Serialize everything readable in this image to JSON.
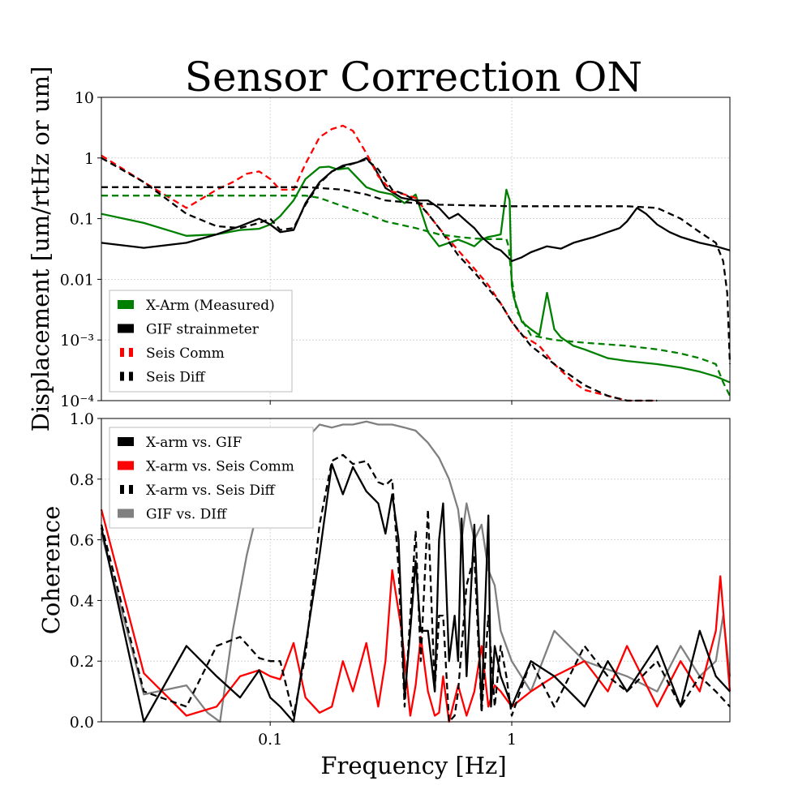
{
  "title": "Sensor Correction ON",
  "xlabel": "Frequency [Hz]",
  "colors": {
    "green": "#008000",
    "black": "#000000",
    "red": "#ff0000",
    "gray": "#808080",
    "grid": "#cccccc"
  },
  "chart_data": [
    {
      "type": "line",
      "name_hint": "top-panel",
      "xscale": "log",
      "yscale": "log",
      "xlim": [
        0.02,
        8
      ],
      "ylim": [
        0.0001,
        10
      ],
      "ylabel": "Displacement [um/rtHz or um]",
      "yticks": [
        {
          "value": 10,
          "label": "10"
        },
        {
          "value": 1,
          "label": "1"
        },
        {
          "value": 0.1,
          "label": "0.1"
        },
        {
          "value": 0.01,
          "label": "0.01"
        },
        {
          "value": 0.001,
          "label": "10⁻³"
        },
        {
          "value": 0.0001,
          "label": "10⁻⁴"
        }
      ],
      "grid": true,
      "legend_position": "lower-left",
      "legend": [
        {
          "label": "X-Arm (Measured)",
          "color": "#008000",
          "style": "solid"
        },
        {
          "label": "GIF strainmeter",
          "color": "#000000",
          "style": "solid"
        },
        {
          "label": "Seis Comm",
          "color": "#ff0000",
          "style": "dashed"
        },
        {
          "label": "Seis Diff",
          "color": "#000000",
          "style": "dashed"
        }
      ],
      "series": [
        {
          "color": "#008000",
          "dash": false,
          "x": [
            0.02,
            0.03,
            0.045,
            0.06,
            0.075,
            0.09,
            0.1,
            0.11,
            0.125,
            0.14,
            0.16,
            0.175,
            0.19,
            0.21,
            0.25,
            0.28,
            0.32,
            0.36,
            0.4,
            0.45,
            0.5,
            0.55,
            0.6,
            0.65,
            0.7,
            0.75,
            0.8,
            0.85,
            0.9,
            0.95,
            0.98,
            1.0,
            1.02,
            1.1,
            1.2,
            1.3,
            1.4,
            1.5,
            1.6,
            1.8,
            2.0,
            2.5,
            3.0,
            4.0,
            5.0,
            6.0,
            7.0,
            8.0
          ],
          "y": [
            0.12,
            0.085,
            0.052,
            0.055,
            0.065,
            0.068,
            0.08,
            0.11,
            0.2,
            0.45,
            0.7,
            0.72,
            0.65,
            0.68,
            0.33,
            0.28,
            0.25,
            0.18,
            0.25,
            0.06,
            0.035,
            0.04,
            0.045,
            0.04,
            0.035,
            0.045,
            0.05,
            0.052,
            0.055,
            0.3,
            0.2,
            0.008,
            0.005,
            0.002,
            0.0015,
            0.0012,
            0.006,
            0.0015,
            0.0011,
            0.0008,
            0.0007,
            0.0005,
            0.00045,
            0.0004,
            0.00035,
            0.0003,
            0.00025,
            0.0002
          ]
        },
        {
          "color": "#000000",
          "dash": false,
          "x": [
            0.02,
            0.03,
            0.045,
            0.06,
            0.075,
            0.09,
            0.1,
            0.11,
            0.125,
            0.14,
            0.16,
            0.18,
            0.2,
            0.23,
            0.25,
            0.27,
            0.3,
            0.35,
            0.4,
            0.45,
            0.5,
            0.55,
            0.6,
            0.65,
            0.7,
            0.75,
            0.8,
            0.85,
            0.9,
            1.0,
            1.1,
            1.2,
            1.4,
            1.6,
            1.8,
            2.0,
            2.2,
            2.5,
            2.8,
            3.0,
            3.3,
            3.6,
            4.0,
            4.5,
            5.0,
            6.0,
            7.0,
            8.0
          ],
          "y": [
            0.04,
            0.033,
            0.04,
            0.055,
            0.075,
            0.1,
            0.08,
            0.06,
            0.065,
            0.18,
            0.4,
            0.6,
            0.75,
            0.85,
            1.0,
            0.7,
            0.32,
            0.22,
            0.2,
            0.2,
            0.15,
            0.1,
            0.12,
            0.09,
            0.07,
            0.05,
            0.04,
            0.033,
            0.03,
            0.02,
            0.023,
            0.028,
            0.035,
            0.032,
            0.04,
            0.045,
            0.05,
            0.06,
            0.07,
            0.09,
            0.15,
            0.12,
            0.08,
            0.06,
            0.05,
            0.04,
            0.035,
            0.03
          ]
        },
        {
          "color": "#ff0000",
          "dash": true,
          "x": [
            0.02,
            0.03,
            0.045,
            0.06,
            0.07,
            0.08,
            0.09,
            0.1,
            0.11,
            0.125,
            0.14,
            0.16,
            0.18,
            0.2,
            0.22,
            0.25,
            0.28,
            0.32,
            0.36,
            0.4,
            0.45,
            0.5,
            0.6,
            0.7,
            0.8,
            0.9,
            1.0,
            1.1,
            1.3,
            1.5,
            1.8,
            2.0,
            2.5,
            3.0,
            3.5,
            4.0
          ],
          "y": [
            1.1,
            0.4,
            0.15,
            0.3,
            0.4,
            0.55,
            0.6,
            0.45,
            0.3,
            0.3,
            0.8,
            2.2,
            3.0,
            3.4,
            2.8,
            1.2,
            0.5,
            0.28,
            0.25,
            0.22,
            0.12,
            0.07,
            0.03,
            0.015,
            0.008,
            0.004,
            0.002,
            0.0012,
            0.0008,
            0.0004,
            0.0002,
            0.00015,
            0.00012,
            0.0001,
            0.0001,
            0.0001
          ]
        },
        {
          "color": "#000000",
          "dash": true,
          "x": [
            0.02,
            0.03,
            0.045,
            0.06,
            0.075,
            0.09,
            0.1,
            0.11,
            0.125,
            0.14,
            0.16,
            0.18,
            0.2,
            0.23,
            0.25,
            0.28,
            0.32,
            0.36,
            0.4,
            0.45,
            0.5,
            0.6,
            0.7,
            0.8,
            0.9,
            1.0,
            1.2,
            1.5,
            2.0,
            2.5,
            3.0,
            3.5,
            4.0
          ],
          "y": [
            1.0,
            0.4,
            0.12,
            0.075,
            0.07,
            0.085,
            0.1,
            0.065,
            0.07,
            0.17,
            0.38,
            0.6,
            0.72,
            0.85,
            0.95,
            0.65,
            0.3,
            0.25,
            0.2,
            0.12,
            0.07,
            0.025,
            0.013,
            0.007,
            0.004,
            0.002,
            0.0008,
            0.0004,
            0.00018,
            0.00012,
            0.0001,
            0.0001,
            0.0001
          ]
        },
        {
          "color": "#008000",
          "dash": true,
          "x": [
            0.02,
            0.05,
            0.1,
            0.12,
            0.14,
            0.16,
            0.2,
            0.25,
            0.3,
            0.4,
            0.5,
            0.6,
            0.7,
            0.8,
            0.9,
            0.95,
            0.97,
            1.0,
            1.05,
            1.2,
            1.5,
            2.0,
            3.0,
            4.0,
            5.0,
            6.0,
            7.0,
            7.5,
            8.0
          ],
          "y": [
            0.24,
            0.24,
            0.24,
            0.24,
            0.24,
            0.22,
            0.16,
            0.12,
            0.09,
            0.07,
            0.055,
            0.05,
            0.047,
            0.046,
            0.046,
            0.046,
            0.035,
            0.01,
            0.003,
            0.0012,
            0.001,
            0.0009,
            0.0008,
            0.0007,
            0.0006,
            0.0005,
            0.0004,
            0.0002,
            0.00012
          ]
        },
        {
          "color": "#000000",
          "dash": true,
          "x": [
            0.02,
            0.05,
            0.1,
            0.12,
            0.14,
            0.16,
            0.2,
            0.25,
            0.3,
            0.4,
            0.5,
            0.7,
            1.0,
            2.0,
            3.0,
            4.0,
            5.0,
            6.0,
            7.0,
            7.5,
            7.8,
            8.0
          ],
          "y": [
            0.33,
            0.33,
            0.33,
            0.33,
            0.33,
            0.32,
            0.3,
            0.25,
            0.2,
            0.18,
            0.17,
            0.165,
            0.16,
            0.16,
            0.16,
            0.15,
            0.1,
            0.06,
            0.04,
            0.02,
            0.006,
            0.0004
          ]
        }
      ]
    },
    {
      "type": "line",
      "name_hint": "bottom-panel",
      "xscale": "log",
      "yscale": "linear",
      "xlim": [
        0.02,
        8
      ],
      "ylim": [
        0.0,
        1.0
      ],
      "ylabel": "Coherence",
      "xticks": [
        {
          "value": 0.1,
          "label": "0.1"
        },
        {
          "value": 1,
          "label": "1"
        }
      ],
      "yticks": [
        {
          "value": 0.0,
          "label": "0.0"
        },
        {
          "value": 0.2,
          "label": "0.2"
        },
        {
          "value": 0.4,
          "label": "0.4"
        },
        {
          "value": 0.6,
          "label": "0.6"
        },
        {
          "value": 0.8,
          "label": "0.8"
        },
        {
          "value": 1.0,
          "label": "1.0"
        }
      ],
      "grid": true,
      "legend_position": "upper-left",
      "legend": [
        {
          "label": "X-arm vs. GIF",
          "color": "#000000",
          "style": "solid"
        },
        {
          "label": "X-arm vs. Seis Comm",
          "color": "#ff0000",
          "style": "solid"
        },
        {
          "label": "X-arm vs. Seis Diff",
          "color": "#000000",
          "style": "dashed"
        },
        {
          "label": "GIF vs. DIff",
          "color": "#808080",
          "style": "solid"
        }
      ],
      "series": [
        {
          "color": "#808080",
          "dash": false,
          "x": [
            0.02,
            0.03,
            0.045,
            0.055,
            0.062,
            0.07,
            0.08,
            0.09,
            0.1,
            0.11,
            0.125,
            0.14,
            0.16,
            0.18,
            0.2,
            0.22,
            0.25,
            0.28,
            0.32,
            0.36,
            0.4,
            0.45,
            0.5,
            0.55,
            0.6,
            0.62,
            0.65,
            0.7,
            0.75,
            0.8,
            0.85,
            0.9,
            1.0,
            1.2,
            1.5,
            2.0,
            3.0,
            4.0,
            5.0,
            6.0,
            7.0,
            7.5,
            8.0
          ],
          "y": [
            0.62,
            0.09,
            0.12,
            0.03,
            0.0,
            0.3,
            0.55,
            0.72,
            0.82,
            0.72,
            0.8,
            0.93,
            0.98,
            0.97,
            0.98,
            0.98,
            0.99,
            0.98,
            0.98,
            0.97,
            0.96,
            0.92,
            0.87,
            0.8,
            0.7,
            0.6,
            0.72,
            0.6,
            0.65,
            0.5,
            0.45,
            0.3,
            0.2,
            0.1,
            0.3,
            0.2,
            0.15,
            0.1,
            0.25,
            0.15,
            0.2,
            0.35,
            0.15
          ]
        },
        {
          "color": "#ff0000",
          "dash": false,
          "x": [
            0.02,
            0.03,
            0.045,
            0.06,
            0.075,
            0.09,
            0.1,
            0.11,
            0.125,
            0.14,
            0.16,
            0.18,
            0.2,
            0.22,
            0.25,
            0.28,
            0.3,
            0.32,
            0.35,
            0.38,
            0.4,
            0.42,
            0.45,
            0.48,
            0.5,
            0.52,
            0.55,
            0.6,
            0.65,
            0.7,
            0.75,
            0.8,
            0.85,
            0.9,
            1.0,
            1.2,
            1.5,
            2.0,
            2.5,
            3.0,
            4.0,
            5.0,
            6.0,
            7.0,
            7.3,
            8.0
          ],
          "y": [
            0.7,
            0.16,
            0.02,
            0.05,
            0.15,
            0.17,
            0.15,
            0.14,
            0.26,
            0.08,
            0.03,
            0.05,
            0.2,
            0.1,
            0.26,
            0.05,
            0.2,
            0.5,
            0.3,
            0.02,
            0.12,
            0.28,
            0.1,
            0.02,
            0.03,
            0.15,
            0.0,
            0.12,
            0.02,
            0.1,
            0.25,
            0.05,
            0.12,
            0.1,
            0.05,
            0.1,
            0.15,
            0.2,
            0.1,
            0.25,
            0.05,
            0.2,
            0.1,
            0.3,
            0.48,
            0.1
          ]
        },
        {
          "color": "#000000",
          "dash": true,
          "x": [
            0.02,
            0.03,
            0.045,
            0.06,
            0.075,
            0.09,
            0.1,
            0.11,
            0.125,
            0.14,
            0.16,
            0.18,
            0.2,
            0.22,
            0.25,
            0.28,
            0.3,
            0.32,
            0.34,
            0.36,
            0.38,
            0.4,
            0.42,
            0.45,
            0.48,
            0.5,
            0.52,
            0.55,
            0.58,
            0.6,
            0.65,
            0.7,
            0.75,
            0.8,
            0.85,
            0.9,
            0.95,
            1.0,
            1.2,
            1.5,
            2.0,
            2.5,
            3.0,
            4.0,
            5.0,
            6.0,
            7.0,
            8.0
          ],
          "y": [
            0.65,
            0.1,
            0.05,
            0.25,
            0.28,
            0.21,
            0.2,
            0.2,
            0.02,
            0.22,
            0.65,
            0.86,
            0.88,
            0.85,
            0.86,
            0.79,
            0.78,
            0.8,
            0.5,
            0.05,
            0.35,
            0.63,
            0.2,
            0.7,
            0.1,
            0.35,
            0.35,
            0.0,
            0.02,
            0.1,
            0.45,
            0.55,
            0.03,
            0.35,
            0.05,
            0.25,
            0.15,
            0.02,
            0.2,
            0.05,
            0.25,
            0.15,
            0.1,
            0.2,
            0.05,
            0.15,
            0.1,
            0.05
          ]
        },
        {
          "color": "#000000",
          "dash": false,
          "x": [
            0.02,
            0.03,
            0.045,
            0.06,
            0.075,
            0.09,
            0.1,
            0.11,
            0.125,
            0.14,
            0.16,
            0.18,
            0.2,
            0.22,
            0.25,
            0.28,
            0.3,
            0.32,
            0.34,
            0.36,
            0.38,
            0.4,
            0.42,
            0.45,
            0.48,
            0.5,
            0.52,
            0.55,
            0.58,
            0.6,
            0.62,
            0.65,
            0.7,
            0.75,
            0.8,
            0.82,
            0.85,
            0.9,
            0.95,
            1.0,
            1.2,
            1.5,
            2.0,
            2.5,
            3.0,
            4.0,
            5.0,
            6.0,
            7.0,
            8.0
          ],
          "y": [
            0.64,
            0.0,
            0.25,
            0.15,
            0.08,
            0.17,
            0.08,
            0.05,
            0.0,
            0.25,
            0.55,
            0.85,
            0.75,
            0.84,
            0.76,
            0.72,
            0.62,
            0.75,
            0.6,
            0.08,
            0.3,
            0.53,
            0.3,
            0.3,
            0.1,
            0.6,
            0.72,
            0.2,
            0.35,
            0.2,
            0.67,
            0.15,
            0.65,
            0.05,
            0.68,
            0.05,
            0.25,
            0.15,
            0.1,
            0.05,
            0.2,
            0.15,
            0.05,
            0.2,
            0.1,
            0.25,
            0.05,
            0.3,
            0.15,
            0.1
          ]
        }
      ]
    }
  ]
}
